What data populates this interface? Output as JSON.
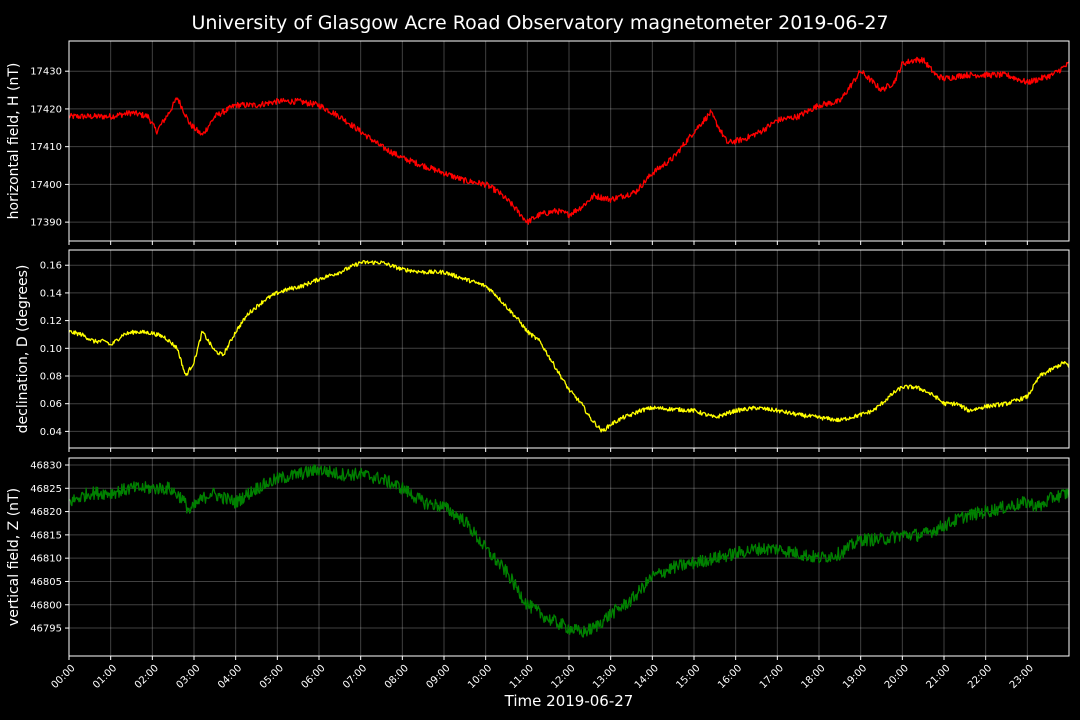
{
  "chart_data": {
    "type": "line",
    "title": "University of Glasgow Acre Road Observatory magnetometer 2019-06-27",
    "xlabel": "Time 2019-06-27",
    "xlim": [
      0,
      24
    ],
    "x_tick_labels": [
      "00:00",
      "01:00",
      "02:00",
      "03:00",
      "04:00",
      "05:00",
      "06:00",
      "07:00",
      "08:00",
      "09:00",
      "10:00",
      "11:00",
      "12:00",
      "13:00",
      "14:00",
      "15:00",
      "16:00",
      "17:00",
      "18:00",
      "19:00",
      "20:00",
      "21:00",
      "22:00",
      "23:00"
    ],
    "grid": true,
    "panels": [
      {
        "ylabel": "horizontal field, H (nT)",
        "color": "#ff0000",
        "ylim": [
          17385,
          17438
        ],
        "yticks": [
          17390,
          17400,
          17410,
          17420,
          17430
        ],
        "noise": 0.8,
        "series": [
          {
            "x": [
              0,
              0.5,
              1.0,
              1.5,
              1.9,
              2.1,
              2.4,
              2.6,
              2.9,
              3.2,
              3.5,
              4.0,
              4.5,
              5.0,
              5.5,
              6.0,
              6.5,
              7.0,
              7.5,
              8.0,
              8.5,
              9.0,
              9.5,
              10.0,
              10.3,
              10.6,
              11.0,
              11.3,
              11.7,
              12.0,
              12.3,
              12.6,
              13.0,
              13.3,
              13.6,
              14.0,
              14.5,
              15.0,
              15.4,
              15.8,
              16.2,
              16.6,
              17.0,
              17.5,
              18.0,
              18.5,
              19.0,
              19.3,
              19.5,
              19.8,
              20.0,
              20.3,
              20.5,
              20.8,
              21.0,
              21.5,
              22.0,
              22.5,
              23.0,
              23.3,
              23.6,
              24.0
            ],
            "y": [
              17418,
              17418,
              17418,
              17419,
              17418,
              17414,
              17419,
              17423,
              17416,
              17413,
              17418,
              17421,
              17421,
              17422,
              17422,
              17421,
              17418,
              17414,
              17410,
              17407,
              17405,
              17403,
              17401,
              17400,
              17398,
              17395,
              17390,
              17392,
              17393,
              17392,
              17394,
              17397,
              17396,
              17397,
              17398,
              17403,
              17407,
              17414,
              17419,
              17411,
              17412,
              17414,
              17417,
              17418,
              17421,
              17422,
              17430,
              17427,
              17425,
              17427,
              17432,
              17433,
              17433,
              17429,
              17428,
              17429,
              17429,
              17429,
              17427,
              17428,
              17429,
              17432
            ]
          }
        ]
      },
      {
        "ylabel": "declination, D (degrees)",
        "color": "#ffff00",
        "ylim": [
          0.028,
          0.171
        ],
        "yticks": [
          0.04,
          0.06,
          0.08,
          0.1,
          0.12,
          0.14,
          0.16
        ],
        "noise": 0.0015,
        "series": [
          {
            "x": [
              0,
              0.3,
              0.6,
              0.9,
              1.0,
              1.3,
              1.6,
              2.0,
              2.3,
              2.6,
              2.8,
              3.0,
              3.2,
              3.5,
              3.7,
              4.0,
              4.3,
              4.7,
              5.0,
              5.3,
              5.6,
              6.0,
              6.5,
              7.0,
              7.5,
              8.0,
              8.5,
              9.0,
              9.5,
              10.0,
              10.2,
              10.5,
              10.8,
              11.0,
              11.3,
              11.6,
              12.0,
              12.3,
              12.5,
              12.8,
              13.0,
              13.3,
              13.5,
              13.7,
              14.0,
              14.5,
              15.0,
              15.5,
              16.0,
              16.5,
              17.0,
              17.5,
              18.0,
              18.5,
              19.0,
              19.3,
              19.5,
              19.8,
              20.0,
              20.3,
              20.5,
              20.8,
              21.0,
              21.3,
              21.6,
              22.0,
              22.5,
              23.0,
              23.3,
              23.6,
              23.9,
              24.0
            ],
            "y": [
              0.112,
              0.11,
              0.105,
              0.105,
              0.102,
              0.11,
              0.112,
              0.111,
              0.108,
              0.1,
              0.08,
              0.09,
              0.112,
              0.098,
              0.095,
              0.112,
              0.125,
              0.135,
              0.14,
              0.143,
              0.145,
              0.15,
              0.155,
              0.162,
              0.162,
              0.157,
              0.155,
              0.155,
              0.15,
              0.145,
              0.14,
              0.13,
              0.12,
              0.112,
              0.105,
              0.09,
              0.07,
              0.06,
              0.05,
              0.04,
              0.045,
              0.05,
              0.052,
              0.055,
              0.057,
              0.056,
              0.055,
              0.05,
              0.055,
              0.057,
              0.055,
              0.052,
              0.05,
              0.048,
              0.052,
              0.055,
              0.06,
              0.068,
              0.072,
              0.072,
              0.07,
              0.065,
              0.06,
              0.06,
              0.055,
              0.058,
              0.06,
              0.065,
              0.08,
              0.085,
              0.09,
              0.086
            ]
          }
        ]
      },
      {
        "ylabel": "vertical field, Z (nT)",
        "color": "#008000",
        "ylim": [
          46789,
          46831.5
        ],
        "yticks": [
          46795,
          46800,
          46805,
          46810,
          46815,
          46820,
          46825,
          46830
        ],
        "noise": 1.4,
        "series": [
          {
            "x": [
              0,
              0.5,
              1.0,
              1.5,
              2.0,
              2.4,
              2.7,
              2.9,
              3.1,
              3.4,
              3.7,
              4.0,
              4.5,
              5.0,
              5.5,
              6.0,
              6.5,
              7.0,
              7.5,
              8.0,
              8.5,
              9.0,
              9.5,
              10.0,
              10.5,
              11.0,
              11.5,
              12.0,
              12.3,
              12.6,
              13.0,
              13.5,
              14.0,
              14.5,
              15.0,
              15.5,
              16.0,
              16.5,
              17.0,
              17.5,
              18.0,
              18.5,
              19.0,
              19.5,
              20.0,
              20.5,
              21.0,
              21.5,
              22.0,
              22.5,
              23.0,
              23.3,
              23.6,
              24.0
            ],
            "y": [
              46822,
              46824,
              46824,
              46825,
              46825,
              46825,
              46823,
              46820,
              46822,
              46824,
              46823,
              46822,
              46825,
              46827,
              46828,
              46829,
              46828,
              46828,
              46827,
              46825,
              46822,
              46821,
              46818,
              46812,
              46807,
              46800,
              46797,
              46795,
              46794,
              46795,
              46798,
              46801,
              46806,
              46808,
              46809,
              46810,
              46811,
              46812,
              46812,
              46811,
              46810,
              46811,
              46814,
              46814,
              46815,
              46815,
              46817,
              46819,
              46820,
              46821,
              46822,
              46821,
              46823,
              46824
            ]
          }
        ]
      }
    ]
  }
}
